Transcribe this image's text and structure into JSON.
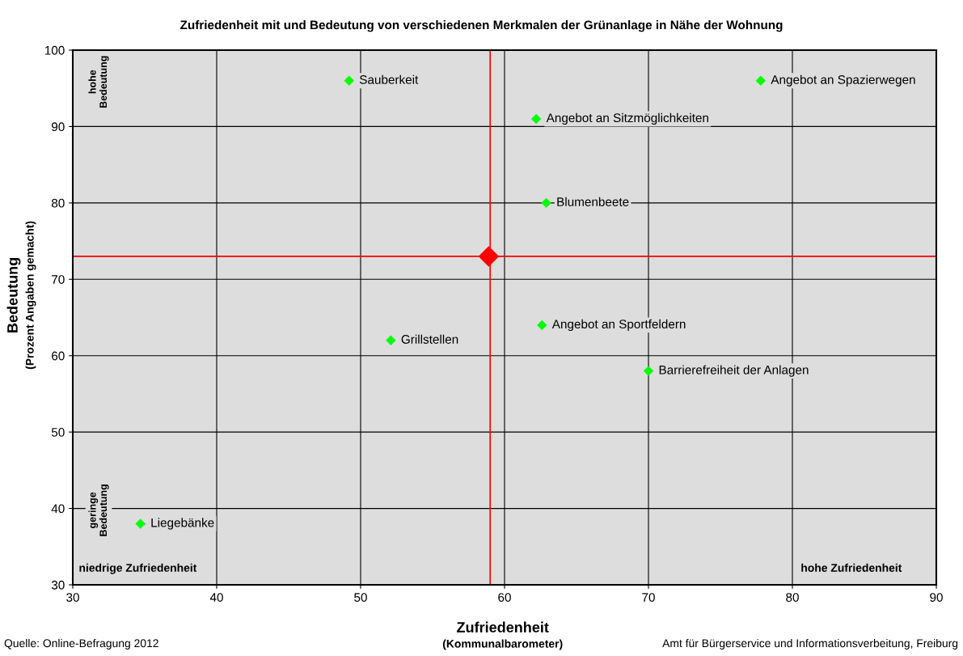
{
  "chart_data": {
    "type": "scatter",
    "title": "Zufriedenheit mit und Bedeutung von verschiedenen Merkmalen der Grünanlage in Nähe der Wohnung",
    "xlabel": "Zufriedenheit\n(Kommunalbarometer)",
    "ylabel": "Bedeutung\n(Prozent Angaben gemacht)",
    "xlim": [
      30,
      90
    ],
    "xticks": [
      30,
      40,
      50,
      60,
      70,
      80,
      90
    ],
    "ylim": [
      30,
      100
    ],
    "yticks": [
      30,
      40,
      50,
      60,
      70,
      80,
      90,
      100
    ],
    "grid": true,
    "marker": "diamond",
    "series": [
      {
        "color": "#00ff00",
        "x": [
          49.2,
          77.8,
          62.2,
          62.9,
          62.6,
          52.1,
          70.0,
          34.7
        ],
        "values": [
          96,
          96,
          91,
          80,
          64,
          62,
          58,
          38
        ]
      },
      {
        "color": "#ff0000",
        "x": [
          58.9
        ],
        "values": [
          73
        ]
      }
    ],
    "ref_lines": [
      {
        "axis": "x",
        "value": 59,
        "color": "#ff0000"
      },
      {
        "axis": "y",
        "value": 73,
        "color": "#ff0000"
      }
    ],
    "annotations": [
      {
        "text": "Sauberkeit",
        "x": 49.2,
        "y": 96
      },
      {
        "text": "Angebot an Spazierwegen",
        "x": 77.8,
        "y": 96
      },
      {
        "text": "Angebot an Sitzmöglichkeiten",
        "x": 62.2,
        "y": 91
      },
      {
        "text": "Blumenbeete",
        "x": 62.9,
        "y": 80
      },
      {
        "text": "Angebot an Sportfeldern",
        "x": 62.6,
        "y": 64
      },
      {
        "text": "Grillstellen",
        "x": 52.1,
        "y": 62
      },
      {
        "text": "Barrierefreiheit der Anlagen",
        "x": 70.0,
        "y": 58
      },
      {
        "text": "Liegebänke",
        "x": 34.7,
        "y": 38
      },
      "hohe\nBedeutung",
      "geringe\nBedeutung",
      "niedrige Zufriedenheit",
      "hohe Zufriedenheit",
      "Quelle: Online-Befragung 2012",
      "Amt für Bürgerservice und Informationsverbeitung, Freiburg"
    ]
  }
}
